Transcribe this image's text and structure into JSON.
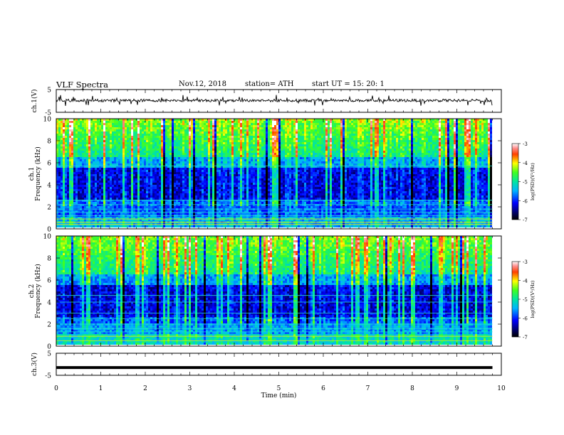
{
  "header": {
    "title": "VLF Spectra",
    "date": "Nov.12, 2018",
    "station": "station= ATH",
    "start": "start UT =   15: 20: 1"
  },
  "chart_data": [
    {
      "type": "line",
      "panel": "ch1-waveform",
      "ylabel": "ch.1(V)",
      "ylim": [
        -5,
        5
      ],
      "yticks": [
        "5",
        "-5"
      ],
      "xlim": [
        0,
        10
      ],
      "series": [
        {
          "values_description_level": 0.2,
          "span_min": [
            0,
            9.8
          ]
        }
      ]
    },
    {
      "type": "heatmap",
      "panel": "ch1-spectrogram",
      "ylabel": "ch.1\nFrequency (kHz)",
      "ylim": [
        0,
        10
      ],
      "yticks": [
        "0",
        "2",
        "4",
        "6",
        "8",
        "10"
      ],
      "xlim": [
        0,
        10
      ],
      "data_span_min": [
        0,
        9.8
      ],
      "colorbar": {
        "label": "log(PSD)(V²/Hz)",
        "range": [
          -7,
          -3
        ],
        "ticks": [
          "-3",
          "-4",
          "-5",
          "-6",
          "-7"
        ]
      }
    },
    {
      "type": "heatmap",
      "panel": "ch2-spectrogram",
      "ylabel": "ch.2\nFrequency (kHz)",
      "ylim": [
        0,
        10
      ],
      "yticks": [
        "0",
        "2",
        "4",
        "6",
        "8",
        "10"
      ],
      "xlim": [
        0,
        10
      ],
      "data_span_min": [
        0,
        9.8
      ],
      "colorbar": {
        "label": "log(PSD)(V²/Hz)",
        "range": [
          -7,
          -3
        ],
        "ticks": [
          "-3",
          "-4",
          "-5",
          "-6",
          "-7"
        ]
      }
    },
    {
      "type": "line",
      "panel": "ch3-waveform",
      "ylabel": "ch.3(V)",
      "ylim": [
        -5,
        5
      ],
      "yticks": [
        "5",
        "-5"
      ],
      "xlim": [
        0,
        10
      ],
      "xlabel": "Time (min)",
      "xticks": [
        "0",
        "1",
        "2",
        "3",
        "4",
        "5",
        "6",
        "7",
        "8",
        "9",
        "10"
      ],
      "series": [
        {
          "level": -1.5,
          "span_min": [
            0,
            9.8
          ]
        }
      ]
    }
  ]
}
